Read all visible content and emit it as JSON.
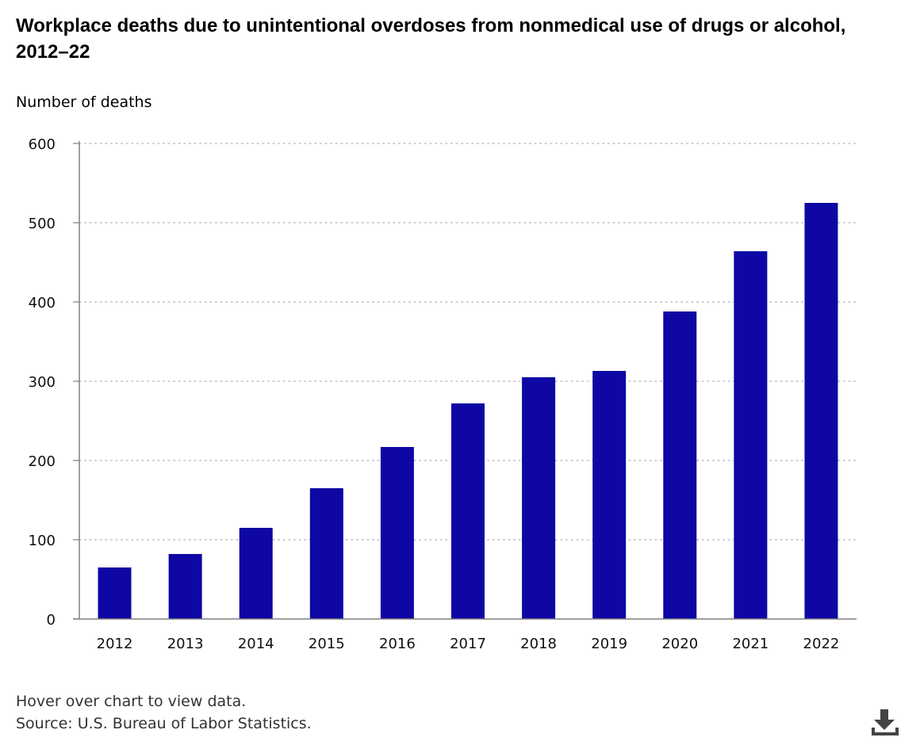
{
  "header": {
    "title": "Workplace deaths due to unintentional overdoses from nonmedical use of drugs or alcohol, 2012–22"
  },
  "footer": {
    "hover_note": "Hover over chart to view data.",
    "source": "Source: U.S. Bureau of Labor Statistics."
  },
  "icons": {
    "download": "download-icon"
  },
  "colors": {
    "bar": "#0e07a3",
    "grid": "#bfbfbf",
    "axis": "#808080"
  },
  "chart_data": {
    "type": "bar",
    "title": "Workplace deaths due to unintentional overdoses from nonmedical use of drugs or alcohol, 2012–22",
    "xlabel": "",
    "ylabel": "Number of deaths",
    "categories": [
      "2012",
      "2013",
      "2014",
      "2015",
      "2016",
      "2017",
      "2018",
      "2019",
      "2020",
      "2021",
      "2022"
    ],
    "values": [
      65,
      82,
      115,
      165,
      217,
      272,
      305,
      313,
      388,
      464,
      525
    ],
    "ylim": [
      0,
      600
    ],
    "yticks": [
      "0",
      "100",
      "200",
      "300",
      "400",
      "500",
      "600"
    ],
    "grid": true,
    "grid_style": "dotted",
    "legend": "none"
  }
}
